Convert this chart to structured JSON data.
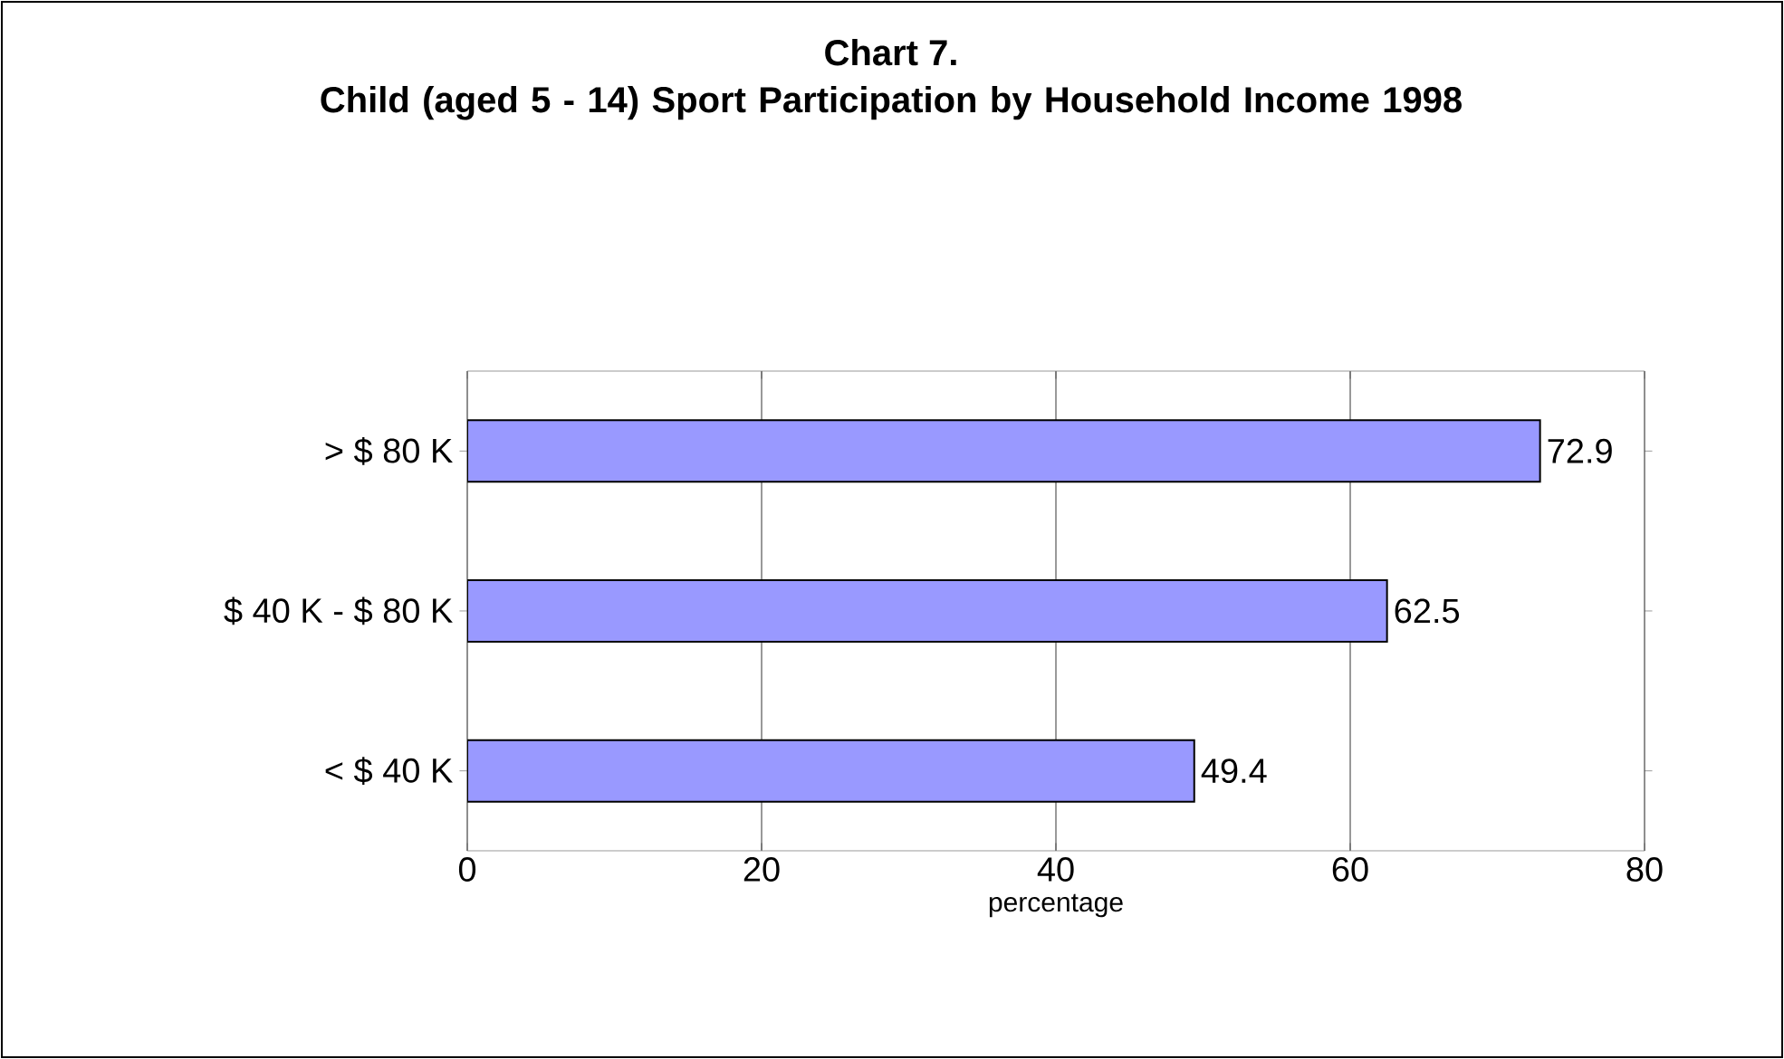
{
  "chart_data": {
    "type": "bar",
    "orientation": "horizontal",
    "title": "Chart 7.",
    "subtitle": "Child (aged 5 - 14) Sport Participation by Household Income 1998",
    "xlabel": "percentage",
    "categories": [
      "> $ 80 K",
      "$ 40 K - $ 80 K",
      "< $ 40 K"
    ],
    "values": [
      72.9,
      62.5,
      49.4
    ],
    "color": "#9999ff",
    "xlim": [
      0,
      80
    ],
    "xticks": [
      0,
      20,
      40,
      60,
      80
    ],
    "grid": "x",
    "data_labels": true
  }
}
